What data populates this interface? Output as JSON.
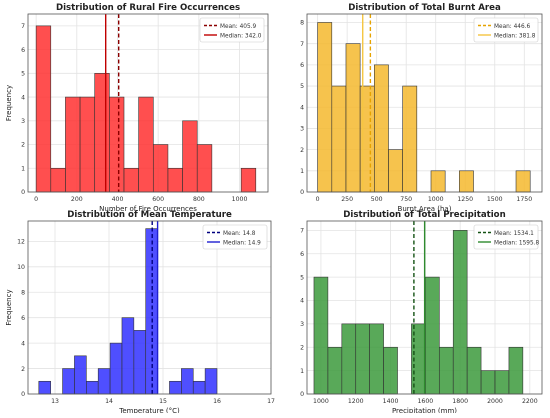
{
  "chart_data": [
    {
      "type": "bar",
      "title": "Distribution of Rural Fire Occurrences",
      "xlabel": "Number of Fire Occurrences",
      "ylabel": "Frequency",
      "xlim": [
        -40,
        1140
      ],
      "ylim": [
        0,
        7.5
      ],
      "xticks": [
        0,
        200,
        400,
        600,
        800,
        1000
      ],
      "yticks": [
        0,
        1,
        2,
        3,
        4,
        5,
        6,
        7
      ],
      "grid": true,
      "legend_position": "top-right",
      "color": "#ff3030",
      "bins": [
        {
          "x0": 0,
          "x1": 72,
          "count": 7
        },
        {
          "x0": 72,
          "x1": 144,
          "count": 1
        },
        {
          "x0": 144,
          "x1": 216,
          "count": 4
        },
        {
          "x0": 216,
          "x1": 288,
          "count": 4
        },
        {
          "x0": 288,
          "x1": 360,
          "count": 5
        },
        {
          "x0": 360,
          "x1": 432,
          "count": 4
        },
        {
          "x0": 432,
          "x1": 504,
          "count": 1
        },
        {
          "x0": 504,
          "x1": 576,
          "count": 4
        },
        {
          "x0": 576,
          "x1": 648,
          "count": 2
        },
        {
          "x0": 648,
          "x1": 720,
          "count": 1
        },
        {
          "x0": 720,
          "x1": 792,
          "count": 3
        },
        {
          "x0": 792,
          "x1": 864,
          "count": 2
        },
        {
          "x0": 864,
          "x1": 936,
          "count": 0
        },
        {
          "x0": 936,
          "x1": 1008,
          "count": 0
        },
        {
          "x0": 1008,
          "x1": 1080,
          "count": 1
        }
      ],
      "mean": {
        "label": "Mean: 405.9",
        "value": 405.9,
        "color": "#8b0000",
        "dashed": true
      },
      "median": {
        "label": "Median: 342.0",
        "value": 342.0,
        "color": "#c00000",
        "dashed": false
      }
    },
    {
      "type": "bar",
      "title": "Distribution of Total Burnt Area",
      "xlabel": "Burnt Area (ha)",
      "ylabel": "",
      "xlim": [
        -90,
        1900
      ],
      "ylim": [
        0,
        8.4
      ],
      "xticks": [
        0,
        250,
        500,
        750,
        1000,
        1250,
        1500,
        1750
      ],
      "yticks": [
        0,
        1,
        2,
        3,
        4,
        5,
        6,
        7,
        8
      ],
      "grid": true,
      "legend_position": "top-right",
      "color": "#f5b82e",
      "bins": [
        {
          "x0": 0,
          "x1": 120,
          "count": 8
        },
        {
          "x0": 120,
          "x1": 240,
          "count": 5
        },
        {
          "x0": 240,
          "x1": 360,
          "count": 7
        },
        {
          "x0": 360,
          "x1": 480,
          "count": 5
        },
        {
          "x0": 480,
          "x1": 600,
          "count": 6
        },
        {
          "x0": 600,
          "x1": 720,
          "count": 2
        },
        {
          "x0": 720,
          "x1": 840,
          "count": 5
        },
        {
          "x0": 840,
          "x1": 960,
          "count": 0
        },
        {
          "x0": 960,
          "x1": 1080,
          "count": 1
        },
        {
          "x0": 1080,
          "x1": 1200,
          "count": 0
        },
        {
          "x0": 1200,
          "x1": 1320,
          "count": 1
        },
        {
          "x0": 1320,
          "x1": 1440,
          "count": 0
        },
        {
          "x0": 1440,
          "x1": 1560,
          "count": 0
        },
        {
          "x0": 1560,
          "x1": 1680,
          "count": 0
        },
        {
          "x0": 1680,
          "x1": 1800,
          "count": 1
        }
      ],
      "mean": {
        "label": "Mean: 446.6",
        "value": 446.6,
        "color": "#e6a300",
        "dashed": true
      },
      "median": {
        "label": "Median: 381.8",
        "value": 381.8,
        "color": "#f5c542",
        "dashed": false
      }
    },
    {
      "type": "bar",
      "title": "Distribution of Mean Temperature",
      "xlabel": "Temperature (°C)",
      "ylabel": "Frequency",
      "xlim": [
        12.5,
        17.0
      ],
      "ylim": [
        0,
        13.6
      ],
      "xticks": [
        13,
        14,
        15,
        16,
        17
      ],
      "yticks": [
        0,
        2,
        4,
        6,
        8,
        10,
        12
      ],
      "grid": true,
      "legend_position": "top-right",
      "color": "#3030ff",
      "bins": [
        {
          "x0": 12.7,
          "x1": 12.92,
          "count": 1
        },
        {
          "x0": 12.92,
          "x1": 13.14,
          "count": 0
        },
        {
          "x0": 13.14,
          "x1": 13.36,
          "count": 2
        },
        {
          "x0": 13.36,
          "x1": 13.58,
          "count": 3
        },
        {
          "x0": 13.58,
          "x1": 13.8,
          "count": 1
        },
        {
          "x0": 13.8,
          "x1": 14.02,
          "count": 2
        },
        {
          "x0": 14.02,
          "x1": 14.24,
          "count": 4
        },
        {
          "x0": 14.24,
          "x1": 14.46,
          "count": 6
        },
        {
          "x0": 14.46,
          "x1": 14.68,
          "count": 5
        },
        {
          "x0": 14.68,
          "x1": 14.9,
          "count": 13
        },
        {
          "x0": 14.9,
          "x1": 15.12,
          "count": 0
        },
        {
          "x0": 15.12,
          "x1": 15.34,
          "count": 1
        },
        {
          "x0": 15.34,
          "x1": 15.56,
          "count": 2
        },
        {
          "x0": 15.56,
          "x1": 15.78,
          "count": 1
        },
        {
          "x0": 15.78,
          "x1": 16.0,
          "count": 2
        }
      ],
      "mean": {
        "label": "Mean: 14.8",
        "value": 14.8,
        "color": "#000080",
        "dashed": true
      },
      "median": {
        "label": "Median: 14.9",
        "value": 14.9,
        "color": "#1f1fd1",
        "dashed": false
      }
    },
    {
      "type": "bar",
      "title": "Distribution of Total Precipitation",
      "xlabel": "Precipitation (mm)",
      "ylabel": "",
      "xlim": [
        920,
        2270
      ],
      "ylim": [
        0,
        7.4
      ],
      "xticks": [
        1000,
        1200,
        1400,
        1600,
        1800,
        2000,
        2200
      ],
      "yticks": [
        0,
        1,
        2,
        3,
        4,
        5,
        6,
        7
      ],
      "grid": true,
      "legend_position": "top-right",
      "color": "#3c9a3c",
      "bins": [
        {
          "x0": 960,
          "x1": 1040,
          "count": 5
        },
        {
          "x0": 1040,
          "x1": 1120,
          "count": 2
        },
        {
          "x0": 1120,
          "x1": 1200,
          "count": 3
        },
        {
          "x0": 1200,
          "x1": 1280,
          "count": 3
        },
        {
          "x0": 1280,
          "x1": 1360,
          "count": 3
        },
        {
          "x0": 1360,
          "x1": 1440,
          "count": 2
        },
        {
          "x0": 1440,
          "x1": 1520,
          "count": 0
        },
        {
          "x0": 1520,
          "x1": 1600,
          "count": 3
        },
        {
          "x0": 1600,
          "x1": 1680,
          "count": 5
        },
        {
          "x0": 1680,
          "x1": 1760,
          "count": 2
        },
        {
          "x0": 1760,
          "x1": 1840,
          "count": 7
        },
        {
          "x0": 1840,
          "x1": 1920,
          "count": 2
        },
        {
          "x0": 1920,
          "x1": 2000,
          "count": 1
        },
        {
          "x0": 2000,
          "x1": 2080,
          "count": 1
        },
        {
          "x0": 2080,
          "x1": 2160,
          "count": 2
        }
      ],
      "mean": {
        "label": "Mean: 1534.1",
        "value": 1534.1,
        "color": "#145214",
        "dashed": true
      },
      "median": {
        "label": "Median: 1595.8",
        "value": 1595.8,
        "color": "#2e8b2e",
        "dashed": false
      }
    }
  ]
}
